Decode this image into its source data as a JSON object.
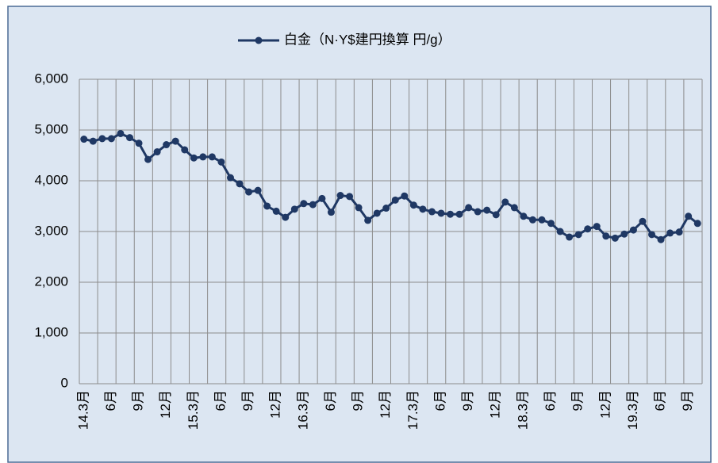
{
  "chart_data": {
    "type": "line",
    "categories": [
      "14.3月",
      null,
      null,
      "6月",
      null,
      null,
      "9月",
      null,
      null,
      "12月",
      null,
      null,
      "15.3月",
      null,
      null,
      "6月",
      null,
      null,
      "9月",
      null,
      null,
      "12月",
      null,
      null,
      "16.3月",
      null,
      null,
      "6月",
      null,
      null,
      "9月",
      null,
      null,
      "12月",
      null,
      null,
      "17.3月",
      null,
      null,
      "6月",
      null,
      null,
      "9月",
      null,
      null,
      "12月",
      null,
      null,
      "18.3月",
      null,
      null,
      "6月",
      null,
      null,
      "9月",
      null,
      null,
      "12月",
      null,
      null,
      "19.3月",
      null,
      null,
      "6月",
      null,
      null,
      "9月",
      null
    ],
    "series": [
      {
        "name": "白金（N·Y$建円換算 円/g）",
        "color": "#1f3864",
        "values": [
          4820,
          4780,
          4830,
          4830,
          4930,
          4850,
          4740,
          4420,
          4570,
          4710,
          4780,
          4610,
          4450,
          4470,
          4470,
          4370,
          4060,
          3940,
          3780,
          3810,
          3500,
          3400,
          3280,
          3440,
          3550,
          3530,
          3650,
          3380,
          3710,
          3690,
          3470,
          3220,
          3360,
          3460,
          3620,
          3700,
          3520,
          3440,
          3390,
          3360,
          3340,
          3340,
          3470,
          3390,
          3420,
          3330,
          3580,
          3470,
          3300,
          3230,
          3230,
          3160,
          3000,
          2890,
          2940,
          3050,
          3100,
          2910,
          2870,
          2950,
          3030,
          3200,
          2940,
          2840,
          2970,
          2990,
          3300,
          3160
        ]
      }
    ],
    "ylim": [
      0,
      6000
    ],
    "yticks": [
      0,
      {
        "value": 1000,
        "label": "1,000"
      },
      {
        "value": 2000,
        "label": "2,000"
      },
      {
        "value": 3000,
        "label": "3,000"
      },
      {
        "value": 4000,
        "label": "4,000"
      },
      {
        "value": 5000,
        "label": "5,000"
      },
      {
        "value": 6000,
        "label": "6,000"
      }
    ],
    "grid": true,
    "legend": "top"
  }
}
